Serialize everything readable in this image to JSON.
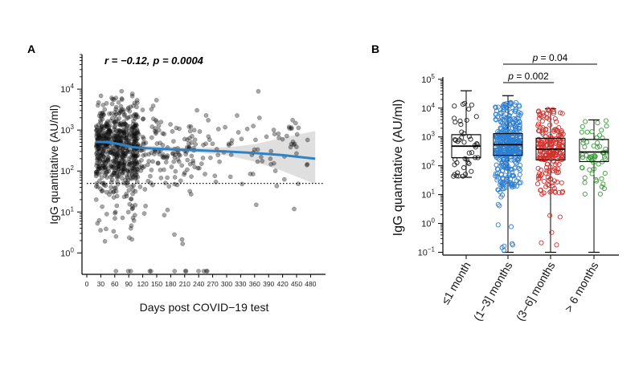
{
  "chart_data": [
    {
      "panel": "A",
      "type": "scatter",
      "annotation": {
        "r": "r = −0.12,",
        "p": "p = 0.0004"
      },
      "xlabel": "Days post COVID−19 test",
      "ylabel": "IgG quantitative (AU/ml)",
      "y_scale": "log10",
      "xlim": [
        0,
        500
      ],
      "ylim": [
        0.3,
        70000
      ],
      "x_ticks": [
        0,
        30,
        60,
        90,
        120,
        150,
        180,
        210,
        240,
        270,
        300,
        330,
        360,
        390,
        420,
        450,
        480
      ],
      "y_ticks": [
        {
          "label": "10",
          "exp": "0",
          "value": 1
        },
        {
          "label": "10",
          "exp": "1",
          "value": 10
        },
        {
          "label": "10",
          "exp": "2",
          "value": 100
        },
        {
          "label": "10",
          "exp": "3",
          "value": 1000
        },
        {
          "label": "10",
          "exp": "4",
          "value": 10000
        }
      ],
      "threshold_y": 50,
      "trend": [
        [
          20,
          520
        ],
        [
          50,
          500
        ],
        [
          80,
          430
        ],
        [
          100,
          380
        ],
        [
          130,
          360
        ],
        [
          180,
          340
        ],
        [
          240,
          320
        ],
        [
          300,
          300
        ],
        [
          360,
          275
        ],
        [
          420,
          245
        ],
        [
          490,
          200
        ]
      ],
      "ci_upper": [
        [
          20,
          700
        ],
        [
          60,
          620
        ],
        [
          100,
          440
        ],
        [
          160,
          400
        ],
        [
          240,
          370
        ],
        [
          300,
          380
        ],
        [
          360,
          450
        ],
        [
          420,
          650
        ],
        [
          490,
          950
        ]
      ],
      "ci_lower": [
        [
          20,
          400
        ],
        [
          60,
          420
        ],
        [
          100,
          330
        ],
        [
          160,
          305
        ],
        [
          240,
          280
        ],
        [
          300,
          240
        ],
        [
          360,
          170
        ],
        [
          420,
          100
        ],
        [
          490,
          48
        ]
      ],
      "grid": false,
      "legend": "none"
    },
    {
      "panel": "B",
      "type": "box",
      "ylabel": "IgG quantitative (AU/ml)",
      "y_scale": "log10",
      "ylim": [
        0.08,
        120000
      ],
      "y_ticks": [
        {
          "label": "10",
          "exp": "−1",
          "value": 0.1
        },
        {
          "label": "10",
          "exp": "0",
          "value": 1
        },
        {
          "label": "10",
          "exp": "1",
          "value": 10
        },
        {
          "label": "10",
          "exp": "2",
          "value": 100
        },
        {
          "label": "10",
          "exp": "3",
          "value": 1000
        },
        {
          "label": "10",
          "exp": "4",
          "value": 10000
        },
        {
          "label": "10",
          "exp": "5",
          "value": 100000
        }
      ],
      "categories": [
        "≤1 month",
        "(1−3] months",
        "(3−6] months",
        "> 6 months"
      ],
      "series": [
        {
          "min": 40,
          "q1": 190,
          "median": 480,
          "q3": 1200,
          "max": 40000,
          "n": 45,
          "color": "#222222"
        },
        {
          "min": 0.1,
          "q1": 230,
          "median": 540,
          "q3": 1300,
          "max": 27000,
          "n": 420,
          "color": "#2f7fd0"
        },
        {
          "min": 0.1,
          "q1": 160,
          "median": 380,
          "q3": 900,
          "max": 9500,
          "n": 230,
          "color": "#d0312d"
        },
        {
          "min": 0.1,
          "q1": 140,
          "median": 300,
          "q3": 820,
          "max": 3900,
          "n": 60,
          "color": "#3a9a3a"
        }
      ],
      "comparisons": [
        {
          "from": 1,
          "to": 2,
          "label": "= 0.002",
          "p": "p"
        },
        {
          "from": 1,
          "to": 3,
          "label": "= 0.04",
          "p": "p"
        }
      ],
      "grid": false,
      "legend": "none"
    }
  ]
}
